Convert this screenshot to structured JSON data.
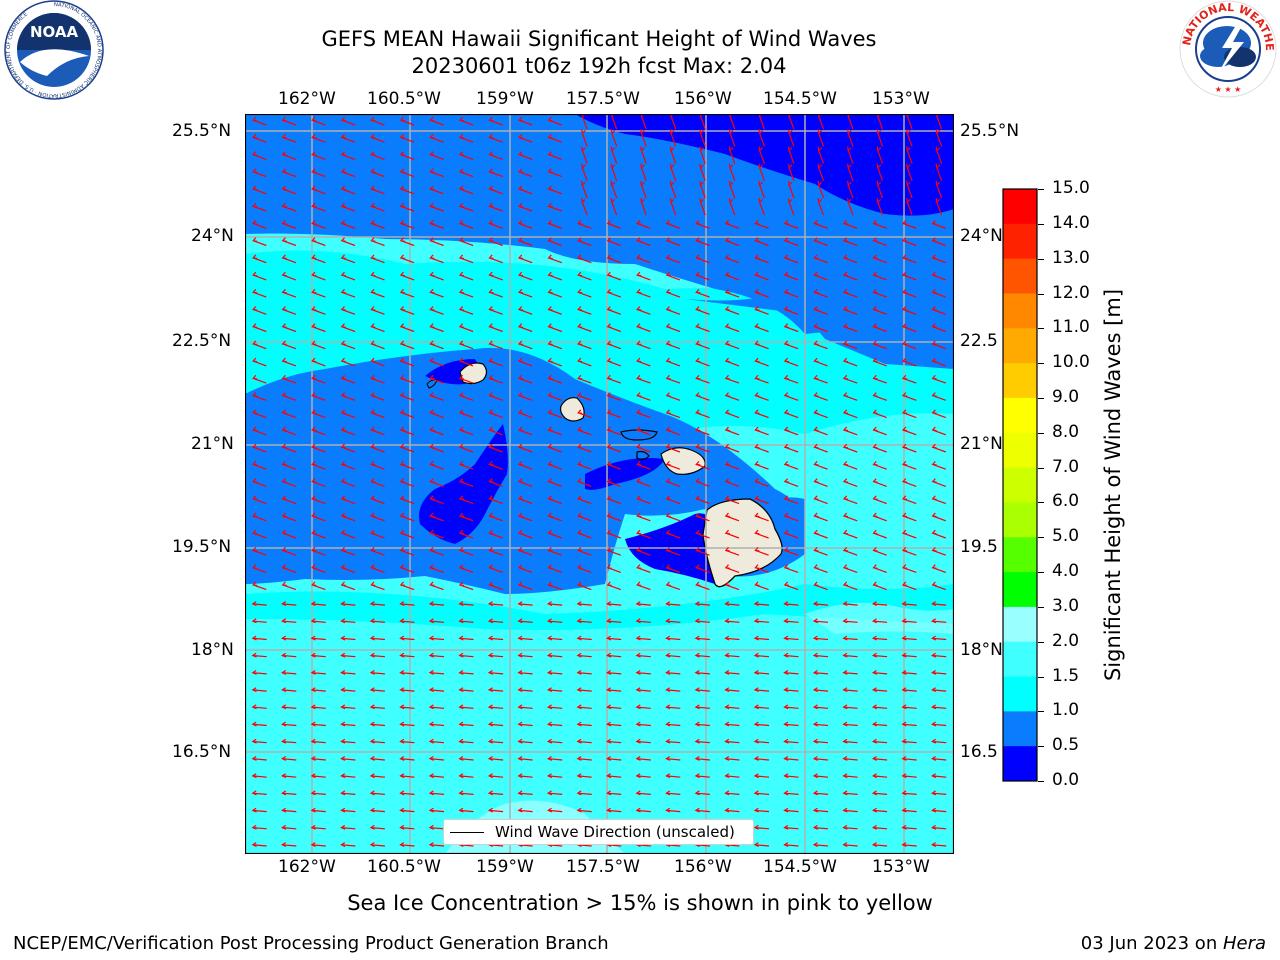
{
  "header": {
    "title_line1": "GEFS MEAN Hawaii Significant Height of Wind Waves",
    "title_line2": "20230601 t06z 192h fcst   Max: 2.04"
  },
  "logos": {
    "noaa_text": "NOAA",
    "noaa_ring_text": "NATIONAL OCEANIC AND ATMOSPHERIC ADMINISTRATION · U.S. DEPARTMENT OF COMMERCE",
    "nws_ring_text": "NATIONAL WEATHER SERVICE"
  },
  "map": {
    "lon_labels": [
      "162°W",
      "160.5°W",
      "159°W",
      "157.5°W",
      "156°W",
      "154.5°W",
      "153°W"
    ],
    "lat_labels_left": [
      "25.5°N",
      "24°N",
      "22.5°N",
      "21°N",
      "19.5°N",
      "18°N",
      "16.5°N"
    ],
    "lat_labels_right": [
      "25.5°N",
      "24°N",
      "22.5",
      "21°N",
      "19.5",
      "18°N",
      "16.5"
    ],
    "legend_label": "Wind Wave Direction (unscaled)",
    "arrow_color": "#ff0000",
    "field_colors": {
      "0.0-0.5": "#0000ff",
      "0.5-1.0": "#0a7dff",
      "1.0-1.5": "#00ffff",
      "1.5-2.0": "#40ffff",
      "land": "#efebdc"
    }
  },
  "colorbar": {
    "label": "Significant Height of Wind Waves [m]",
    "ticks": [
      "15.0",
      "14.0",
      "13.0",
      "12.0",
      "11.0",
      "10.0",
      "9.0",
      "8.0",
      "7.0",
      "6.0",
      "5.0",
      "4.0",
      "3.0",
      "2.0",
      "1.5",
      "1.0",
      "0.5",
      "0.0"
    ],
    "colors_top_to_bottom": [
      "#ff0000",
      "#ff2200",
      "#ff5500",
      "#ff8800",
      "#ffaa00",
      "#ffcc00",
      "#ffff00",
      "#eeff00",
      "#ccff00",
      "#aaff00",
      "#55ff00",
      "#00ff00",
      "#00dd44",
      "#55ff99",
      "#99ffff",
      "#40ffff",
      "#00ffff",
      "#0a7dff",
      "#0000ff"
    ]
  },
  "notes": {
    "sea_ice": "Sea Ice Concentration > 15% is shown in pink to yellow"
  },
  "footer": {
    "left": "NCEP/EMC/Verification Post Processing Product Generation Branch",
    "right_prefix": "03 Jun 2023 on ",
    "right_host": "Hera"
  }
}
